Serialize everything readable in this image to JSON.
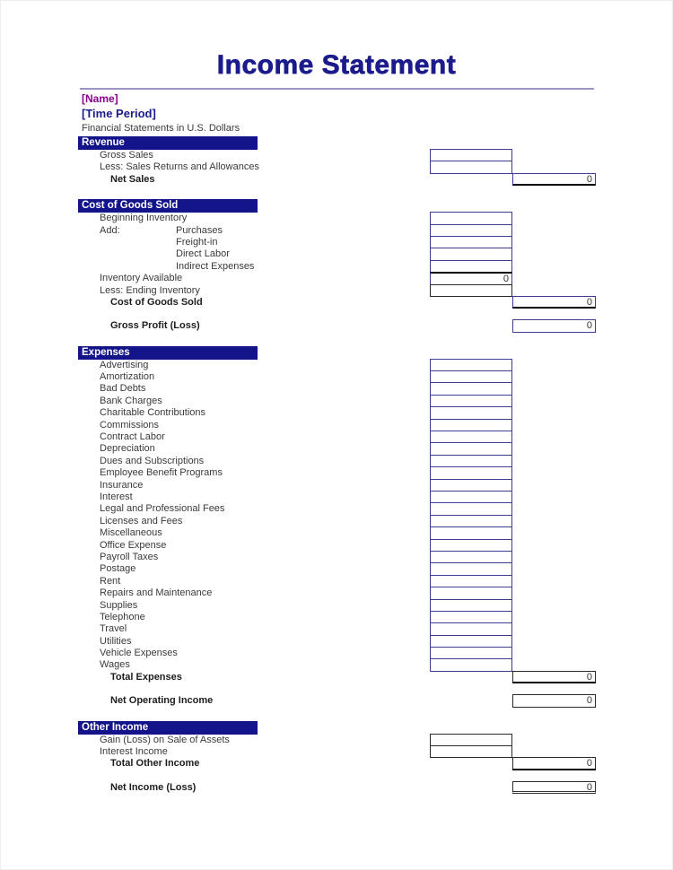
{
  "header": {
    "title": "Income Statement",
    "name_placeholder": "[Name]",
    "time_period_placeholder": "[Time Period]",
    "subtitle": "Financial Statements in U.S. Dollars"
  },
  "colors": {
    "navy": "#13138a",
    "title": "#1b1b8c",
    "purple": "#8b008b",
    "rule": "#9a95c2",
    "boxblue": "#3e3e96"
  },
  "sections": [
    {
      "id": "revenue",
      "gap_before": 2,
      "bar_label": "Revenue",
      "rows": [
        {
          "label": "Gross Sales",
          "indent": 1,
          "box": "inner",
          "border": "blue"
        },
        {
          "label": "Less: Sales Returns and Allowances",
          "indent": 1,
          "box": "inner",
          "border": "blue"
        },
        {
          "label": "Net Sales",
          "indent": 2,
          "bold": true,
          "box": "right",
          "value": "0",
          "border": "blue",
          "bottom": "thick"
        }
      ]
    },
    {
      "id": "cost-of-goods-sold",
      "gap_before": 15,
      "bar_label": "Cost of Goods Sold",
      "rows": [
        {
          "label": "Beginning Inventory",
          "indent": 1,
          "box": "inner",
          "border": "blue"
        },
        {
          "label": "Add:",
          "sublabel": "Purchases",
          "indent": 1,
          "box": "inner",
          "border": "blue"
        },
        {
          "sublabel": "Freight-in",
          "box": "inner",
          "border": "blue"
        },
        {
          "sublabel": "Direct Labor",
          "box": "inner",
          "border": "blue"
        },
        {
          "sublabel": "Indirect Expenses",
          "box": "inner",
          "border": "blue"
        },
        {
          "label": "Inventory Available",
          "indent": 1,
          "box": "inner",
          "value": "0",
          "border": "blue",
          "top": "thick"
        },
        {
          "label": "Less: Ending Inventory",
          "indent": 1,
          "box": "inner",
          "border": "black"
        },
        {
          "label": "Cost of Goods Sold",
          "indent": 2,
          "bold": true,
          "box": "right",
          "value": "0",
          "border": "blue",
          "bottom": "thick"
        },
        {
          "spacer": 13
        },
        {
          "label": "Gross Profit (Loss)",
          "indent": 2,
          "bold": true,
          "box": "right",
          "value": "0",
          "border": "blue"
        }
      ]
    },
    {
      "id": "expenses",
      "gap_before": 15,
      "bar_label": "Expenses",
      "rows": [
        "Advertising",
        "Amortization",
        "Bad Debts",
        "Bank Charges",
        "Charitable Contributions",
        "Commissions",
        "Contract Labor",
        "Depreciation",
        "Dues and Subscriptions",
        "Employee Benefit Programs",
        "Insurance",
        "Interest",
        "Legal and Professional Fees",
        "Licenses and Fees",
        "Miscellaneous",
        "Office Expense",
        "Payroll Taxes",
        "Postage",
        "Rent",
        "Repairs and Maintenance",
        "Supplies",
        "Telephone",
        "Travel",
        "Utilities",
        "Vehicle Expenses",
        "Wages",
        {
          "label": "Total Expenses",
          "indent": 2,
          "bold": true,
          "box": "right",
          "value": "0",
          "border": "black",
          "bottom": "thick"
        },
        {
          "spacer": 13
        },
        {
          "label": "Net Operating Income",
          "indent": 2,
          "bold": true,
          "box": "right",
          "value": "0",
          "border": "black"
        }
      ]
    },
    {
      "id": "other-income",
      "gap_before": 15,
      "bar_label": "Other Income",
      "rows": [
        {
          "label": "Gain (Loss) on Sale of Assets",
          "indent": 1,
          "box": "inner",
          "border": "black"
        },
        {
          "label": "Interest Income",
          "indent": 1,
          "box": "inner",
          "border": "black"
        },
        {
          "label": "Total Other Income",
          "indent": 2,
          "bold": true,
          "box": "right",
          "value": "0",
          "border": "black",
          "bottom": "thick"
        },
        {
          "spacer": 13
        },
        {
          "label": "Net Income (Loss)",
          "indent": 2,
          "bold": true,
          "box": "right",
          "value": "0",
          "border": "black",
          "bottom": "double"
        }
      ]
    }
  ]
}
